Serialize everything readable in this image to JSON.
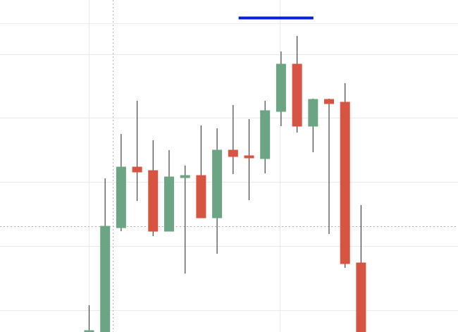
{
  "chart_data": {
    "type": "candlestick",
    "title": "",
    "xlabel": "",
    "ylabel": "",
    "ylim": [
      0,
      471
    ],
    "grid": true,
    "legend": "none",
    "crosshair": {
      "x_index": 1.5,
      "y": 149.6
    },
    "reference_line": {
      "from_index": 9.5,
      "to_index": 14.0,
      "y": 445.5
    },
    "candles": [
      {
        "i": 0,
        "open": 0.5,
        "close": 2.0,
        "high": 38.0,
        "low": 0.0,
        "direction": "up"
      },
      {
        "i": 1,
        "open": 0.0,
        "close": 150.0,
        "high": 218.0,
        "low": 0.0,
        "direction": "up"
      },
      {
        "i": 2,
        "open": 148.0,
        "close": 234.0,
        "high": 281.0,
        "low": 143.0,
        "direction": "up"
      },
      {
        "i": 3,
        "open": 234.0,
        "close": 227.0,
        "high": 328.0,
        "low": 186.0,
        "direction": "down"
      },
      {
        "i": 4,
        "open": 229.0,
        "close": 143.0,
        "high": 272.0,
        "low": 136.0,
        "direction": "down"
      },
      {
        "i": 5,
        "open": 143.0,
        "close": 220.0,
        "high": 258.0,
        "low": 143.0,
        "direction": "up"
      },
      {
        "i": 6,
        "open": 219.0,
        "close": 222.0,
        "high": 236.0,
        "low": 83.0,
        "direction": "up"
      },
      {
        "i": 7,
        "open": 222.0,
        "close": 162.0,
        "high": 293.0,
        "low": 162.0,
        "direction": "down"
      },
      {
        "i": 8,
        "open": 162.0,
        "close": 258.0,
        "high": 289.0,
        "low": 111.0,
        "direction": "up"
      },
      {
        "i": 9,
        "open": 258.0,
        "close": 249.0,
        "high": 322.0,
        "low": 224.0,
        "direction": "down"
      },
      {
        "i": 10,
        "open": 250.0,
        "close": 247.0,
        "high": 302.0,
        "low": 187.0,
        "direction": "down"
      },
      {
        "i": 11,
        "open": 246.0,
        "close": 314.0,
        "high": 328.0,
        "low": 225.0,
        "direction": "up"
      },
      {
        "i": 12,
        "open": 313.0,
        "close": 380.0,
        "high": 398.0,
        "low": 292.0,
        "direction": "up"
      },
      {
        "i": 13,
        "open": 380.0,
        "close": 292.0,
        "high": 420.0,
        "low": 283.0,
        "direction": "down"
      },
      {
        "i": 14,
        "open": 292.0,
        "close": 330.0,
        "high": 331.0,
        "low": 255.0,
        "direction": "up"
      },
      {
        "i": 15,
        "open": 330.0,
        "close": 324.0,
        "high": 331.0,
        "low": 139.0,
        "direction": "down"
      },
      {
        "i": 16,
        "open": 326.0,
        "close": 97.0,
        "high": 353.0,
        "low": 91.0,
        "direction": "down"
      },
      {
        "i": 17,
        "open": 98.0,
        "close": 0.0,
        "high": 180.0,
        "low": 0.0,
        "direction": "down"
      }
    ],
    "colors": {
      "up": "#6ba583",
      "down": "#d75442",
      "wick": "#444444",
      "grid": "#e9e9e9",
      "crosshair": "#b0b0b0",
      "reference_line": "#0a1ed6"
    }
  }
}
